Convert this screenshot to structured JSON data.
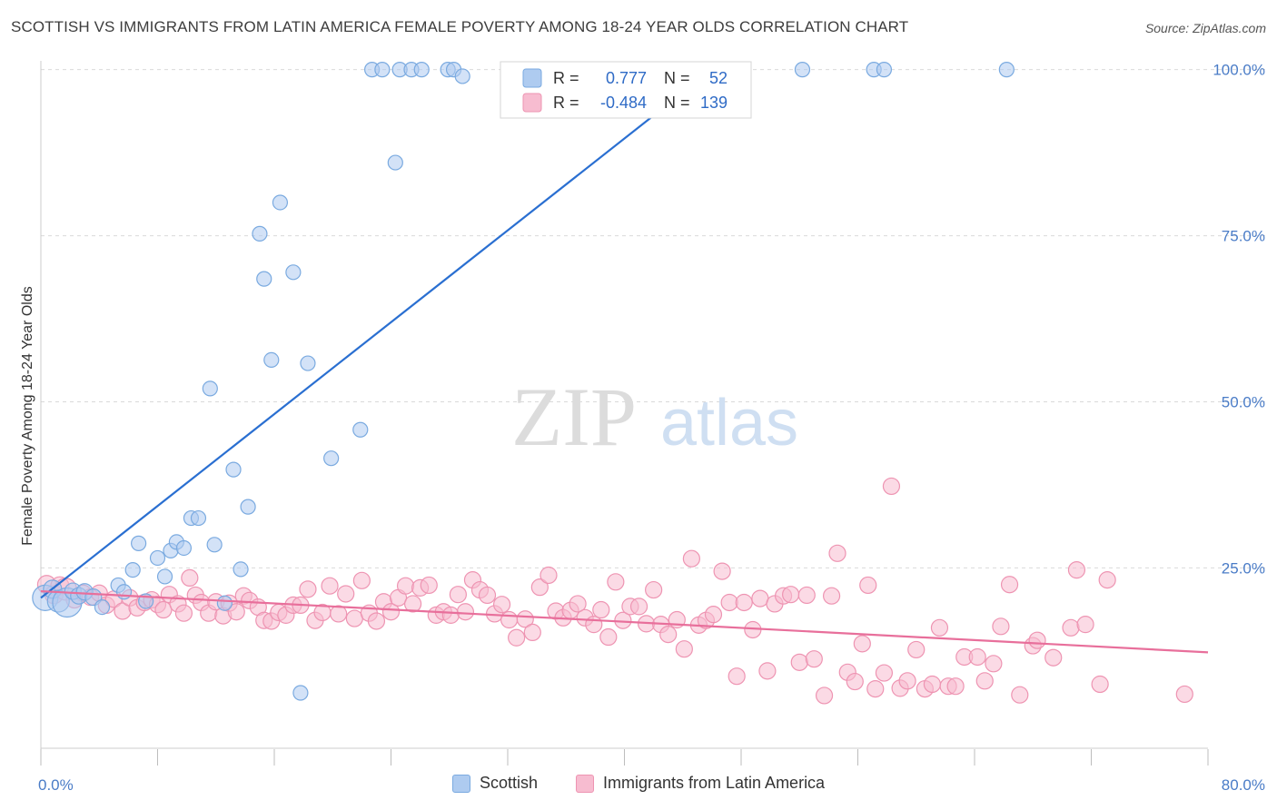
{
  "title": "SCOTTISH VS IMMIGRANTS FROM LATIN AMERICA FEMALE POVERTY AMONG 18-24 YEAR OLDS CORRELATION CHART",
  "source": "Source: ZipAtlas.com",
  "watermark": {
    "zip": "ZIP",
    "atlas": "atlas"
  },
  "colors": {
    "blue_fill": "#aecbf0",
    "blue_stroke": "#7aaae0",
    "blue_line": "#2a6fd1",
    "pink_fill": "#f7bcd0",
    "pink_stroke": "#ee94b2",
    "pink_line": "#e86f9b",
    "value_text": "#2f6bc6",
    "grid": "#d9d9d9"
  },
  "legend_box": {
    "rows": [
      {
        "r_label": "R =",
        "r_value": "0.777",
        "n_label": "N =",
        "n_value": "52",
        "series": "Scottish"
      },
      {
        "r_label": "R =",
        "r_value": "-0.484",
        "n_label": "N =",
        "n_value": "139",
        "series": "Immigrants from Latin America"
      }
    ]
  },
  "bottom_legend": [
    "Scottish",
    "Immigrants from Latin America"
  ],
  "chart_data": {
    "type": "scatter",
    "title": "SCOTTISH VS IMMIGRANTS FROM LATIN AMERICA FEMALE POVERTY AMONG 18-24 YEAR OLDS CORRELATION CHART",
    "xlabel": "",
    "ylabel": "Female Poverty Among 18-24 Year Olds",
    "xlim": [
      0,
      80
    ],
    "ylim": [
      -2,
      102
    ],
    "x_tick_labels": [
      {
        "v": 0,
        "t": "0.0%"
      },
      {
        "v": 80,
        "t": "80.0%"
      }
    ],
    "y_tick_labels": [
      {
        "v": 25,
        "t": "25.0%"
      },
      {
        "v": 50,
        "t": "50.0%"
      },
      {
        "v": 75,
        "t": "75.0%"
      },
      {
        "v": 100,
        "t": "100.0%"
      }
    ],
    "x_minor_ticks": [
      0,
      8,
      16,
      24,
      32,
      40,
      48,
      56,
      64,
      72,
      80
    ],
    "gridlines_y": [
      25,
      50,
      75,
      100
    ],
    "legend_position": "top-center",
    "series": [
      {
        "name": "Scottish",
        "color": "#aecbf0",
        "trend": {
          "x0": 0,
          "y0": 20.5,
          "x1": 46,
          "y1": 100
        },
        "points": [
          [
            0.3,
            20.5,
            14
          ],
          [
            0.8,
            21.8,
            10
          ],
          [
            1.2,
            20.0,
            12
          ],
          [
            1.8,
            19.8,
            16
          ],
          [
            2.2,
            21.5,
            9
          ],
          [
            2.6,
            20.8,
            9
          ],
          [
            3.0,
            21.4,
            9
          ],
          [
            3.6,
            20.6,
            9
          ],
          [
            4.2,
            19.1,
            8
          ],
          [
            5.3,
            22.4,
            8
          ],
          [
            5.7,
            21.4,
            8
          ],
          [
            6.3,
            24.7,
            8
          ],
          [
            6.7,
            28.7,
            8
          ],
          [
            7.2,
            20.0,
            8
          ],
          [
            8.0,
            26.5,
            8
          ],
          [
            8.5,
            23.7,
            8
          ],
          [
            8.9,
            27.6,
            8
          ],
          [
            9.3,
            28.9,
            8
          ],
          [
            9.8,
            28.0,
            8
          ],
          [
            10.3,
            32.5,
            8
          ],
          [
            10.8,
            32.5,
            8
          ],
          [
            11.6,
            52.0,
            8
          ],
          [
            11.9,
            28.5,
            8
          ],
          [
            12.6,
            19.7,
            8
          ],
          [
            13.2,
            39.8,
            8
          ],
          [
            13.7,
            24.8,
            8
          ],
          [
            14.2,
            34.2,
            8
          ],
          [
            15.0,
            75.3,
            8
          ],
          [
            15.3,
            68.5,
            8
          ],
          [
            15.8,
            56.3,
            8
          ],
          [
            16.4,
            80.0,
            8
          ],
          [
            17.3,
            69.5,
            8
          ],
          [
            17.8,
            6.2,
            8
          ],
          [
            18.3,
            55.8,
            8
          ],
          [
            19.9,
            41.5,
            8
          ],
          [
            21.9,
            45.8,
            8
          ],
          [
            22.7,
            100.0,
            8
          ],
          [
            23.4,
            100.0,
            8
          ],
          [
            24.3,
            86.0,
            8
          ],
          [
            24.6,
            100.0,
            8
          ],
          [
            25.4,
            100.0,
            8
          ],
          [
            26.1,
            100.0,
            8
          ],
          [
            27.9,
            100.0,
            8
          ],
          [
            28.3,
            100.0,
            8
          ],
          [
            28.9,
            99.0,
            8
          ],
          [
            32.5,
            100.0,
            8
          ],
          [
            37.8,
            100.0,
            8
          ],
          [
            43.5,
            100.0,
            8
          ],
          [
            52.2,
            100.0,
            8
          ],
          [
            57.1,
            100.0,
            8
          ],
          [
            57.8,
            100.0,
            8
          ],
          [
            66.2,
            100.0,
            8
          ]
        ]
      },
      {
        "name": "Immigrants from Latin America",
        "color": "#f7bcd0",
        "trend": {
          "x0": 0,
          "y0": 21.5,
          "x1": 80,
          "y1": 12.3
        },
        "points": [
          [
            0.4,
            22.5,
            10
          ],
          [
            0.9,
            21.0,
            10
          ],
          [
            1.3,
            22.3,
            10
          ],
          [
            1.7,
            21.8,
            12
          ],
          [
            2.3,
            20.2,
            9
          ],
          [
            2.9,
            21.2,
            9
          ],
          [
            3.4,
            20.6,
            9
          ],
          [
            4.0,
            21.2,
            9
          ],
          [
            4.5,
            19.4,
            9
          ],
          [
            5.0,
            20.3,
            9
          ],
          [
            5.6,
            18.5,
            9
          ],
          [
            6.1,
            20.5,
            9
          ],
          [
            6.6,
            19.0,
            9
          ],
          [
            7.1,
            19.8,
            9
          ],
          [
            7.6,
            20.2,
            9
          ],
          [
            8.0,
            19.5,
            9
          ],
          [
            8.4,
            18.7,
            9
          ],
          [
            8.8,
            21.0,
            9
          ],
          [
            9.4,
            19.6,
            9
          ],
          [
            9.8,
            18.2,
            9
          ],
          [
            10.2,
            23.5,
            9
          ],
          [
            10.6,
            20.9,
            9
          ],
          [
            11.0,
            19.8,
            9
          ],
          [
            11.5,
            18.2,
            9
          ],
          [
            12.0,
            19.9,
            9
          ],
          [
            12.5,
            17.8,
            9
          ],
          [
            12.9,
            19.7,
            9
          ],
          [
            13.4,
            18.4,
            9
          ],
          [
            13.9,
            20.8,
            9
          ],
          [
            14.3,
            20.1,
            9
          ],
          [
            14.9,
            19.1,
            9
          ],
          [
            15.3,
            17.1,
            9
          ],
          [
            15.8,
            17.0,
            9
          ],
          [
            16.3,
            18.3,
            9
          ],
          [
            16.8,
            17.9,
            9
          ],
          [
            17.3,
            19.4,
            9
          ],
          [
            17.8,
            19.4,
            9
          ],
          [
            18.3,
            21.8,
            9
          ],
          [
            18.8,
            17.1,
            9
          ],
          [
            19.3,
            18.3,
            9
          ],
          [
            19.8,
            22.3,
            9
          ],
          [
            20.4,
            18.1,
            9
          ],
          [
            20.9,
            21.1,
            9
          ],
          [
            21.5,
            17.4,
            9
          ],
          [
            22.0,
            23.1,
            9
          ],
          [
            22.5,
            18.2,
            9
          ],
          [
            23.0,
            17.0,
            9
          ],
          [
            23.5,
            19.9,
            9
          ],
          [
            24.0,
            18.4,
            9
          ],
          [
            24.5,
            20.5,
            9
          ],
          [
            25.0,
            22.3,
            9
          ],
          [
            25.5,
            19.6,
            9
          ],
          [
            26.0,
            22.0,
            9
          ],
          [
            26.6,
            22.4,
            9
          ],
          [
            27.1,
            17.9,
            9
          ],
          [
            27.6,
            18.4,
            9
          ],
          [
            28.1,
            17.9,
            9
          ],
          [
            28.6,
            21.0,
            9
          ],
          [
            29.1,
            18.4,
            9
          ],
          [
            29.6,
            23.2,
            9
          ],
          [
            30.1,
            21.7,
            9
          ],
          [
            30.6,
            20.9,
            9
          ],
          [
            31.1,
            18.1,
            9
          ],
          [
            31.6,
            19.5,
            9
          ],
          [
            32.1,
            17.2,
            9
          ],
          [
            32.6,
            14.5,
            9
          ],
          [
            33.2,
            17.3,
            9
          ],
          [
            33.7,
            15.3,
            9
          ],
          [
            34.2,
            22.1,
            9
          ],
          [
            34.8,
            23.9,
            9
          ],
          [
            35.3,
            18.5,
            9
          ],
          [
            35.8,
            17.5,
            9
          ],
          [
            36.3,
            18.6,
            9
          ],
          [
            36.8,
            19.6,
            9
          ],
          [
            37.3,
            17.5,
            9
          ],
          [
            37.9,
            16.5,
            9
          ],
          [
            38.4,
            18.7,
            9
          ],
          [
            38.9,
            14.6,
            9
          ],
          [
            39.4,
            22.9,
            9
          ],
          [
            39.9,
            17.1,
            9
          ],
          [
            40.4,
            19.2,
            9
          ],
          [
            41.0,
            19.2,
            9
          ],
          [
            41.5,
            16.6,
            9
          ],
          [
            42.0,
            21.7,
            9
          ],
          [
            42.5,
            16.5,
            9
          ],
          [
            43.0,
            15.0,
            9
          ],
          [
            43.6,
            17.2,
            9
          ],
          [
            44.1,
            12.8,
            9
          ],
          [
            44.6,
            26.4,
            9
          ],
          [
            45.1,
            16.4,
            9
          ],
          [
            45.6,
            17.1,
            9
          ],
          [
            46.1,
            18.0,
            9
          ],
          [
            46.7,
            24.5,
            9
          ],
          [
            47.2,
            19.8,
            9
          ],
          [
            47.7,
            8.7,
            9
          ],
          [
            48.2,
            19.8,
            9
          ],
          [
            48.8,
            15.7,
            9
          ],
          [
            49.3,
            20.4,
            9
          ],
          [
            49.8,
            9.5,
            9
          ],
          [
            50.3,
            19.6,
            9
          ],
          [
            50.9,
            20.8,
            9
          ],
          [
            51.4,
            21.0,
            9
          ],
          [
            52.0,
            10.8,
            9
          ],
          [
            52.5,
            20.9,
            9
          ],
          [
            53.0,
            11.3,
            9
          ],
          [
            53.7,
            5.8,
            9
          ],
          [
            54.2,
            20.8,
            9
          ],
          [
            54.6,
            27.2,
            9
          ],
          [
            55.3,
            9.3,
            9
          ],
          [
            55.8,
            7.9,
            9
          ],
          [
            56.3,
            13.6,
            9
          ],
          [
            56.7,
            22.4,
            9
          ],
          [
            57.2,
            6.8,
            9
          ],
          [
            57.8,
            9.2,
            9
          ],
          [
            58.3,
            37.3,
            9
          ],
          [
            58.9,
            6.9,
            9
          ],
          [
            59.4,
            8.0,
            9
          ],
          [
            60.0,
            12.7,
            9
          ],
          [
            60.6,
            6.8,
            9
          ],
          [
            61.1,
            7.5,
            9
          ],
          [
            61.6,
            16.0,
            9
          ],
          [
            62.2,
            7.2,
            9
          ],
          [
            62.7,
            7.2,
            9
          ],
          [
            63.3,
            11.6,
            9
          ],
          [
            64.2,
            11.6,
            9
          ],
          [
            64.7,
            8.0,
            9
          ],
          [
            65.3,
            10.6,
            9
          ],
          [
            65.8,
            16.2,
            9
          ],
          [
            66.4,
            22.5,
            9
          ],
          [
            67.1,
            5.9,
            9
          ],
          [
            68.0,
            13.3,
            9
          ],
          [
            68.3,
            14.1,
            9
          ],
          [
            69.4,
            11.5,
            9
          ],
          [
            70.6,
            16.0,
            9
          ],
          [
            71.0,
            24.7,
            9
          ],
          [
            71.6,
            16.5,
            9
          ],
          [
            72.6,
            7.5,
            9
          ],
          [
            73.1,
            23.2,
            9
          ],
          [
            78.4,
            6.0,
            9
          ]
        ]
      }
    ]
  }
}
